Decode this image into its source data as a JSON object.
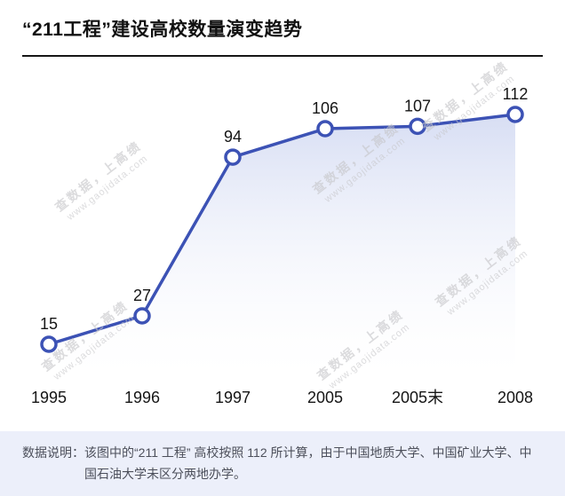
{
  "title": "“211工程”建设高校数量演变趋势",
  "chart_data": {
    "type": "line",
    "title": "“211工程”建设高校数量演变趋势",
    "categories": [
      "1995",
      "1996",
      "1997",
      "2005",
      "2005末",
      "2008"
    ],
    "values": [
      15,
      27,
      94,
      106,
      107,
      112
    ],
    "data_labels": [
      "15",
      "27",
      "94",
      "106",
      "107",
      "112"
    ],
    "xlabel": "",
    "ylabel": "",
    "ylim": [
      0,
      130
    ],
    "grid": false,
    "legend": "none",
    "line_color": "#3c52b5",
    "marker_fill": "#ffffff",
    "area_fill_top": "#d5dcf3",
    "area_fill_bottom": "#ffffff"
  },
  "watermark": {
    "line1": "查数据，上高绩",
    "line2": "www.gaojidata.com"
  },
  "note": {
    "label": "数据说明：",
    "text": "该图中的“211 工程” 高校按照 112 所计算，由于中国地质大学、中国矿业大学、中国石油大学未区分两地办学。"
  }
}
